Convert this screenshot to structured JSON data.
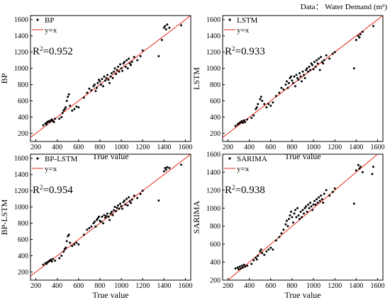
{
  "note": "Data： Water Demand (m³)",
  "colors": {
    "points": "#000000",
    "fit_line": "#e8392f",
    "axes": "#000000",
    "background": "#ffffff"
  },
  "chart_data": [
    {
      "type": "scatter",
      "series": [
        {
          "name": "BP",
          "marker": "dot"
        },
        {
          "name": "y=x",
          "marker": "line"
        }
      ],
      "r2_label": "R",
      "r2_value": "=0.952",
      "xlabel": "True value",
      "ylabel": "BP",
      "xlim": [
        150,
        1650
      ],
      "ylim": [
        100,
        1650
      ],
      "xticks": [
        "200",
        "400",
        "600",
        "800",
        "1000",
        "1200",
        "1400",
        "1600"
      ],
      "yticks": [
        "200",
        "400",
        "600",
        "800",
        "1000",
        "1200",
        "1400",
        "1600"
      ],
      "points": [
        [
          270,
          300
        ],
        [
          290,
          320
        ],
        [
          300,
          330
        ],
        [
          310,
          340
        ],
        [
          320,
          350
        ],
        [
          330,
          340
        ],
        [
          340,
          360
        ],
        [
          350,
          370
        ],
        [
          360,
          350
        ],
        [
          370,
          340
        ],
        [
          380,
          380
        ],
        [
          300,
          310
        ],
        [
          420,
          380
        ],
        [
          440,
          400
        ],
        [
          450,
          450
        ],
        [
          460,
          480
        ],
        [
          470,
          500
        ],
        [
          480,
          520
        ],
        [
          490,
          600
        ],
        [
          500,
          650
        ],
        [
          510,
          680
        ],
        [
          520,
          540
        ],
        [
          540,
          480
        ],
        [
          560,
          500
        ],
        [
          580,
          530
        ],
        [
          600,
          520
        ],
        [
          650,
          640
        ],
        [
          680,
          700
        ],
        [
          700,
          750
        ],
        [
          720,
          730
        ],
        [
          740,
          780
        ],
        [
          750,
          800
        ],
        [
          760,
          720
        ],
        [
          770,
          760
        ],
        [
          780,
          820
        ],
        [
          790,
          860
        ],
        [
          800,
          840
        ],
        [
          810,
          800
        ],
        [
          820,
          870
        ],
        [
          830,
          780
        ],
        [
          840,
          900
        ],
        [
          850,
          850
        ],
        [
          860,
          880
        ],
        [
          870,
          920
        ],
        [
          880,
          860
        ],
        [
          890,
          820
        ],
        [
          900,
          900
        ],
        [
          910,
          940
        ],
        [
          920,
          880
        ],
        [
          930,
          960
        ],
        [
          940,
          1000
        ],
        [
          950,
          930
        ],
        [
          960,
          980
        ],
        [
          970,
          1020
        ],
        [
          980,
          960
        ],
        [
          990,
          1050
        ],
        [
          1000,
          1000
        ],
        [
          1010,
          970
        ],
        [
          1020,
          1060
        ],
        [
          1030,
          1080
        ],
        [
          1040,
          1020
        ],
        [
          1050,
          1100
        ],
        [
          1060,
          1000
        ],
        [
          1070,
          1120
        ],
        [
          1080,
          1060
        ],
        [
          1090,
          1040
        ],
        [
          1100,
          1080
        ],
        [
          1120,
          1140
        ],
        [
          1150,
          1100
        ],
        [
          1180,
          1150
        ],
        [
          1200,
          1220
        ],
        [
          1350,
          1150
        ],
        [
          1380,
          1350
        ],
        [
          1400,
          1500
        ],
        [
          1410,
          1520
        ],
        [
          1420,
          1480
        ],
        [
          1430,
          1540
        ],
        [
          1450,
          1500
        ],
        [
          1560,
          1530
        ]
      ]
    },
    {
      "type": "scatter",
      "series": [
        {
          "name": "LSTM",
          "marker": "dot"
        },
        {
          "name": "y=x",
          "marker": "line"
        }
      ],
      "r2_label": "R",
      "r2_value": "=0.933",
      "xlabel": "True value",
      "ylabel": "LSTM",
      "xlim": [
        150,
        1650
      ],
      "ylim": [
        100,
        1650
      ],
      "xticks": [
        "200",
        "400",
        "600",
        "800",
        "1000",
        "1200",
        "1400",
        "1600"
      ],
      "yticks": [
        "200",
        "400",
        "600",
        "800",
        "1000",
        "1200",
        "1400",
        "1600"
      ],
      "points": [
        [
          270,
          290
        ],
        [
          290,
          310
        ],
        [
          300,
          320
        ],
        [
          310,
          330
        ],
        [
          320,
          340
        ],
        [
          330,
          350
        ],
        [
          340,
          330
        ],
        [
          350,
          360
        ],
        [
          360,
          340
        ],
        [
          380,
          370
        ],
        [
          420,
          390
        ],
        [
          440,
          420
        ],
        [
          460,
          500
        ],
        [
          470,
          520
        ],
        [
          480,
          560
        ],
        [
          500,
          620
        ],
        [
          510,
          650
        ],
        [
          520,
          600
        ],
        [
          540,
          560
        ],
        [
          560,
          520
        ],
        [
          580,
          560
        ],
        [
          600,
          540
        ],
        [
          620,
          580
        ],
        [
          650,
          660
        ],
        [
          680,
          700
        ],
        [
          700,
          760
        ],
        [
          720,
          740
        ],
        [
          740,
          800
        ],
        [
          750,
          840
        ],
        [
          760,
          760
        ],
        [
          770,
          820
        ],
        [
          780,
          880
        ],
        [
          790,
          900
        ],
        [
          800,
          850
        ],
        [
          810,
          820
        ],
        [
          820,
          900
        ],
        [
          830,
          780
        ],
        [
          840,
          920
        ],
        [
          850,
          880
        ],
        [
          860,
          860
        ],
        [
          870,
          940
        ],
        [
          880,
          900
        ],
        [
          890,
          840
        ],
        [
          900,
          960
        ],
        [
          910,
          920
        ],
        [
          920,
          880
        ],
        [
          930,
          980
        ],
        [
          940,
          1000
        ],
        [
          950,
          960
        ],
        [
          960,
          1020
        ],
        [
          970,
          980
        ],
        [
          980,
          1060
        ],
        [
          990,
          1040
        ],
        [
          1000,
          990
        ],
        [
          1010,
          1080
        ],
        [
          1020,
          1020
        ],
        [
          1030,
          1100
        ],
        [
          1040,
          1060
        ],
        [
          1050,
          1120
        ],
        [
          1060,
          980
        ],
        [
          1070,
          1140
        ],
        [
          1080,
          1080
        ],
        [
          1090,
          1060
        ],
        [
          1100,
          1100
        ],
        [
          1120,
          1160
        ],
        [
          1150,
          1120
        ],
        [
          1180,
          1180
        ],
        [
          1200,
          1200
        ],
        [
          1380,
          1000
        ],
        [
          1400,
          1350
        ],
        [
          1420,
          1400
        ],
        [
          1430,
          1380
        ],
        [
          1440,
          1420
        ],
        [
          1460,
          1450
        ],
        [
          1560,
          1520
        ]
      ]
    },
    {
      "type": "scatter",
      "series": [
        {
          "name": "BP-LSTM",
          "marker": "dot"
        },
        {
          "name": "y=x",
          "marker": "line"
        }
      ],
      "r2_label": "R",
      "r2_value": "=0.954",
      "xlabel": "True value",
      "ylabel": "BP-LSTM",
      "xlim": [
        150,
        1650
      ],
      "ylim": [
        100,
        1650
      ],
      "xticks": [
        "200",
        "400",
        "600",
        "800",
        "1000",
        "1200",
        "1400",
        "1600"
      ],
      "yticks": [
        "200",
        "400",
        "600",
        "800",
        "1000",
        "1200",
        "1400",
        "1600"
      ],
      "points": [
        [
          270,
          290
        ],
        [
          290,
          310
        ],
        [
          300,
          300
        ],
        [
          310,
          320
        ],
        [
          320,
          330
        ],
        [
          330,
          340
        ],
        [
          340,
          350
        ],
        [
          350,
          330
        ],
        [
          360,
          360
        ],
        [
          380,
          340
        ],
        [
          420,
          370
        ],
        [
          440,
          400
        ],
        [
          460,
          450
        ],
        [
          470,
          480
        ],
        [
          480,
          500
        ],
        [
          490,
          580
        ],
        [
          500,
          640
        ],
        [
          510,
          660
        ],
        [
          520,
          560
        ],
        [
          540,
          520
        ],
        [
          560,
          540
        ],
        [
          580,
          560
        ],
        [
          600,
          540
        ],
        [
          650,
          660
        ],
        [
          680,
          720
        ],
        [
          700,
          740
        ],
        [
          720,
          760
        ],
        [
          740,
          800
        ],
        [
          750,
          820
        ],
        [
          760,
          760
        ],
        [
          770,
          840
        ],
        [
          780,
          860
        ],
        [
          790,
          880
        ],
        [
          800,
          830
        ],
        [
          810,
          820
        ],
        [
          820,
          880
        ],
        [
          830,
          800
        ],
        [
          840,
          900
        ],
        [
          850,
          870
        ],
        [
          860,
          890
        ],
        [
          870,
          920
        ],
        [
          880,
          880
        ],
        [
          890,
          840
        ],
        [
          900,
          920
        ],
        [
          910,
          940
        ],
        [
          920,
          900
        ],
        [
          930,
          960
        ],
        [
          940,
          1000
        ],
        [
          950,
          950
        ],
        [
          960,
          990
        ],
        [
          970,
          1020
        ],
        [
          980,
          980
        ],
        [
          990,
          1040
        ],
        [
          1000,
          1010
        ],
        [
          1010,
          980
        ],
        [
          1020,
          1060
        ],
        [
          1030,
          1080
        ],
        [
          1040,
          1030
        ],
        [
          1050,
          1100
        ],
        [
          1060,
          1020
        ],
        [
          1070,
          1120
        ],
        [
          1080,
          1070
        ],
        [
          1090,
          1050
        ],
        [
          1100,
          1090
        ],
        [
          1120,
          1140
        ],
        [
          1150,
          1110
        ],
        [
          1180,
          1160
        ],
        [
          1200,
          1200
        ],
        [
          1350,
          1080
        ],
        [
          1400,
          1440
        ],
        [
          1410,
          1480
        ],
        [
          1420,
          1460
        ],
        [
          1430,
          1490
        ],
        [
          1450,
          1480
        ],
        [
          1560,
          1520
        ]
      ]
    },
    {
      "type": "scatter",
      "series": [
        {
          "name": "SARIMA",
          "marker": "dot"
        },
        {
          "name": "y=x",
          "marker": "line"
        }
      ],
      "r2_label": "R",
      "r2_value": "=0.938",
      "xlabel": "True value",
      "ylabel": "SARIMA",
      "xlim": [
        150,
        1650
      ],
      "ylim": [
        200,
        1600
      ],
      "xticks": [
        "200",
        "400",
        "600",
        "800",
        "1000",
        "1200",
        "1400",
        "1600"
      ],
      "yticks": [
        "200",
        "400",
        "600",
        "800",
        "1000",
        "1200",
        "1400",
        "1600"
      ],
      "points": [
        [
          270,
          330
        ],
        [
          290,
          340
        ],
        [
          300,
          320
        ],
        [
          310,
          350
        ],
        [
          320,
          330
        ],
        [
          330,
          360
        ],
        [
          340,
          340
        ],
        [
          350,
          370
        ],
        [
          360,
          350
        ],
        [
          380,
          360
        ],
        [
          420,
          380
        ],
        [
          440,
          420
        ],
        [
          460,
          450
        ],
        [
          470,
          430
        ],
        [
          480,
          470
        ],
        [
          500,
          520
        ],
        [
          510,
          540
        ],
        [
          520,
          500
        ],
        [
          540,
          480
        ],
        [
          560,
          520
        ],
        [
          580,
          540
        ],
        [
          600,
          560
        ],
        [
          620,
          540
        ],
        [
          650,
          640
        ],
        [
          680,
          680
        ],
        [
          700,
          720
        ],
        [
          720,
          760
        ],
        [
          740,
          820
        ],
        [
          750,
          860
        ],
        [
          760,
          800
        ],
        [
          770,
          880
        ],
        [
          780,
          920
        ],
        [
          790,
          960
        ],
        [
          800,
          900
        ],
        [
          810,
          840
        ],
        [
          820,
          940
        ],
        [
          830,
          980
        ],
        [
          840,
          900
        ],
        [
          850,
          1000
        ],
        [
          860,
          920
        ],
        [
          870,
          880
        ],
        [
          880,
          960
        ],
        [
          890,
          900
        ],
        [
          900,
          980
        ],
        [
          910,
          940
        ],
        [
          920,
          1000
        ],
        [
          930,
          1020
        ],
        [
          940,
          960
        ],
        [
          950,
          1040
        ],
        [
          960,
          1000
        ],
        [
          970,
          1060
        ],
        [
          980,
          1020
        ],
        [
          990,
          980
        ],
        [
          1000,
          1040
        ],
        [
          1010,
          1080
        ],
        [
          1020,
          1040
        ],
        [
          1030,
          1100
        ],
        [
          1040,
          1060
        ],
        [
          1050,
          1120
        ],
        [
          1060,
          1080
        ],
        [
          1070,
          1140
        ],
        [
          1080,
          1100
        ],
        [
          1090,
          1060
        ],
        [
          1100,
          1160
        ],
        [
          1120,
          1200
        ],
        [
          1150,
          1140
        ],
        [
          1180,
          1180
        ],
        [
          1200,
          1220
        ],
        [
          1380,
          1050
        ],
        [
          1400,
          1420
        ],
        [
          1420,
          1480
        ],
        [
          1430,
          1440
        ],
        [
          1440,
          1460
        ],
        [
          1460,
          1400
        ],
        [
          1550,
          1380
        ],
        [
          1560,
          1460
        ]
      ]
    }
  ]
}
